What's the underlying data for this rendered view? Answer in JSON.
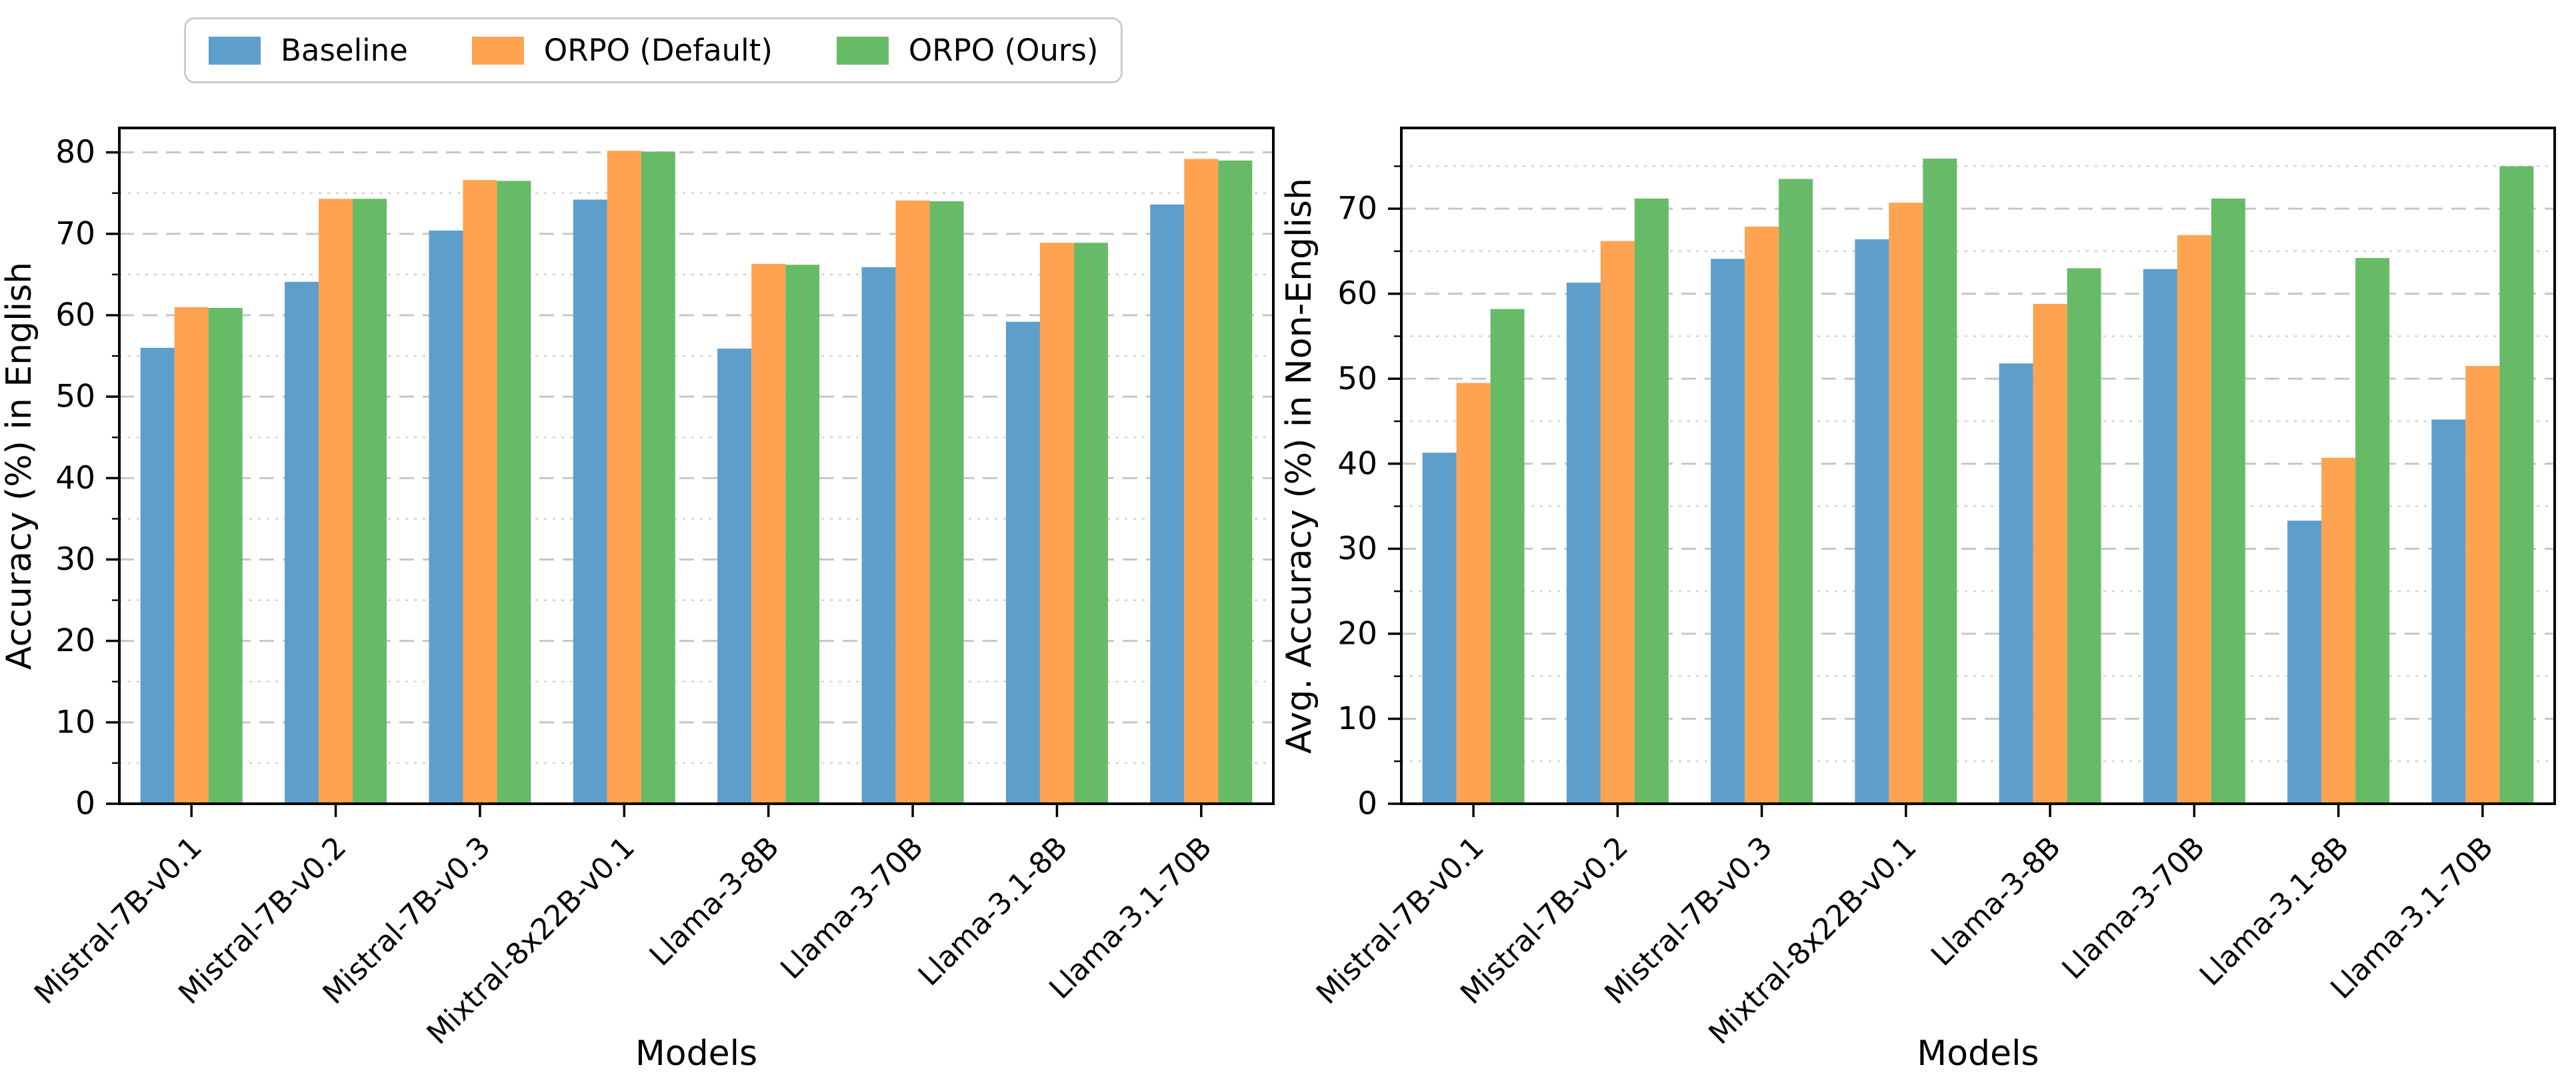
{
  "figure": {
    "legend": {
      "items": [
        {
          "label": "Baseline",
          "color": "#5E9ECB"
        },
        {
          "label": "ORPO (Default)",
          "color": "#FFA351"
        },
        {
          "label": "ORPO (Ours)",
          "color": "#67BB67"
        }
      ]
    }
  },
  "chart_data": [
    {
      "type": "bar",
      "title": "",
      "ylabel": "Accuracy (%) in English",
      "xlabel": "Models",
      "categories": [
        "Mistral-7B-v0.1",
        "Mistral-7B-v0.2",
        "Mistral-7B-v0.3",
        "Mixtral-8x22B-v0.1",
        "Llama-3-8B",
        "Llama-3-70B",
        "Llama-3.1-8B",
        "Llama-3.1-70B"
      ],
      "series": [
        {
          "name": "Baseline",
          "color": "#5E9ECB",
          "values": [
            56.0,
            64.1,
            70.4,
            74.2,
            55.9,
            65.9,
            59.2,
            73.6
          ]
        },
        {
          "name": "ORPO (Default)",
          "color": "#FFA351",
          "values": [
            61.0,
            74.3,
            76.6,
            80.2,
            66.3,
            74.1,
            68.9,
            79.2
          ]
        },
        {
          "name": "ORPO (Ours)",
          "color": "#67BB67",
          "values": [
            60.9,
            74.3,
            76.5,
            80.1,
            66.2,
            74.0,
            68.9,
            79.0
          ]
        }
      ],
      "ylim": [
        0,
        83
      ],
      "yticks": [
        0,
        10,
        20,
        30,
        40,
        50,
        60,
        70,
        80
      ],
      "yticks_minor": [
        5,
        15,
        25,
        35,
        45,
        55,
        65,
        75
      ],
      "grid": "major dashed + minor dotted, horizontal only",
      "legend_position": "upper left, outside above plot"
    },
    {
      "type": "bar",
      "title": "",
      "ylabel": "Avg. Accuracy (%) in Non-English",
      "xlabel": "Models",
      "categories": [
        "Mistral-7B-v0.1",
        "Mistral-7B-v0.2",
        "Mistral-7B-v0.3",
        "Mixtral-8x22B-v0.1",
        "Llama-3-8B",
        "Llama-3-70B",
        "Llama-3.1-8B",
        "Llama-3.1-70B"
      ],
      "series": [
        {
          "name": "Baseline",
          "color": "#5E9ECB",
          "values": [
            41.3,
            61.3,
            64.1,
            66.4,
            51.8,
            62.9,
            33.3,
            45.2
          ]
        },
        {
          "name": "ORPO (Default)",
          "color": "#FFA351",
          "values": [
            49.5,
            66.2,
            67.9,
            70.7,
            58.8,
            66.9,
            40.7,
            51.5
          ]
        },
        {
          "name": "ORPO (Ours)",
          "color": "#67BB67",
          "values": [
            58.2,
            71.2,
            73.5,
            75.9,
            63.0,
            71.2,
            64.2,
            75.0
          ]
        }
      ],
      "ylim": [
        0,
        79.5
      ],
      "yticks": [
        0,
        10,
        20,
        30,
        40,
        50,
        60,
        70
      ],
      "yticks_minor": [
        5,
        15,
        25,
        35,
        45,
        55,
        65,
        75
      ],
      "grid": "major dashed + minor dotted, horizontal only",
      "legend_position": "shared with left chart"
    }
  ]
}
